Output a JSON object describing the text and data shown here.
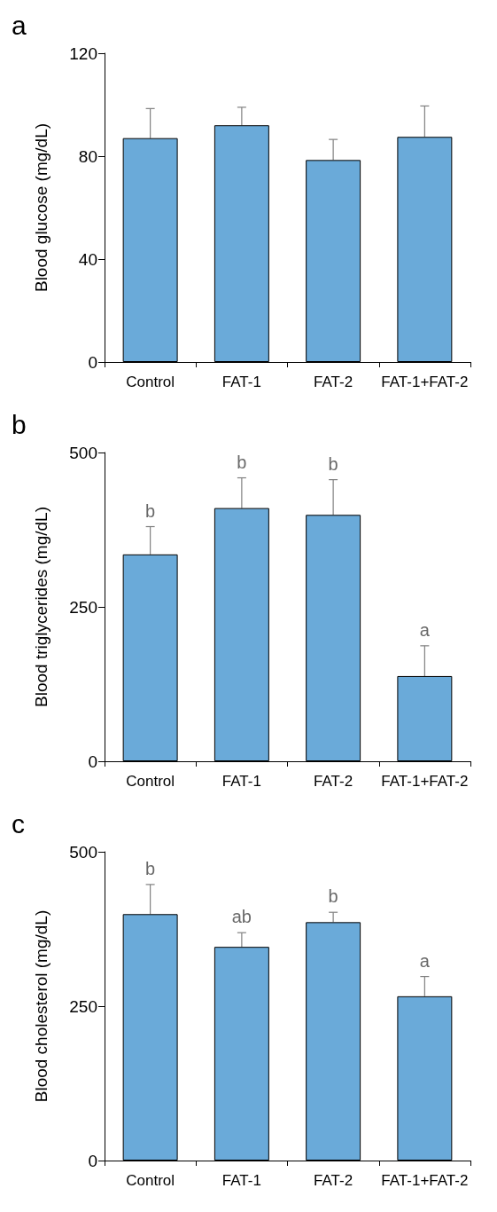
{
  "chart_data": [
    {
      "type": "bar",
      "title": "a",
      "ylabel": "Blood glucose (mg/dL)",
      "categories": [
        "Control",
        "FAT-1",
        "FAT-2",
        "FAT-1+FAT-2"
      ],
      "values": [
        87,
        92,
        78.5,
        87.5
      ],
      "errors": [
        11.5,
        7,
        8,
        12
      ],
      "color": "#6aaad9",
      "ylim": [
        0,
        120
      ],
      "yticks": [
        0,
        40,
        80,
        120
      ],
      "grid": false
    },
    {
      "type": "bar",
      "title": "b",
      "ylabel": "Blood triglycerides (mg/dL)",
      "categories": [
        "Control",
        "FAT-1",
        "FAT-2",
        "FAT-1+FAT-2"
      ],
      "values": [
        335,
        410,
        399,
        138
      ],
      "errors": [
        45,
        49,
        57,
        49
      ],
      "color": "#6aaad9",
      "ylim": [
        0,
        500
      ],
      "yticks": [
        0,
        250,
        500
      ],
      "grid": false,
      "annotations": [
        {
          "text": "b",
          "x": "Control",
          "y": 380
        },
        {
          "text": "b",
          "x": "FAT-1",
          "y": 459
        },
        {
          "text": "b",
          "x": "FAT-2",
          "y": 456
        },
        {
          "text": "a",
          "x": "FAT-1+FAT-2",
          "y": 187
        }
      ]
    },
    {
      "type": "bar",
      "title": "c",
      "ylabel": "Blood cholesterol (mg/dL)",
      "categories": [
        "Control",
        "FAT-1",
        "FAT-2",
        "FAT-1+FAT-2"
      ],
      "values": [
        399,
        346,
        386,
        266
      ],
      "errors": [
        48,
        23,
        16,
        32
      ],
      "color": "#6aaad9",
      "ylim": [
        0,
        500
      ],
      "yticks": [
        0,
        250,
        500
      ],
      "grid": false,
      "annotations": [
        {
          "text": "b",
          "x": "Control",
          "y": 447
        },
        {
          "text": "ab",
          "x": "FAT-1",
          "y": 369
        },
        {
          "text": "b",
          "x": "FAT-2",
          "y": 402
        },
        {
          "text": "a",
          "x": "FAT-1+FAT-2",
          "y": 298
        }
      ]
    }
  ]
}
